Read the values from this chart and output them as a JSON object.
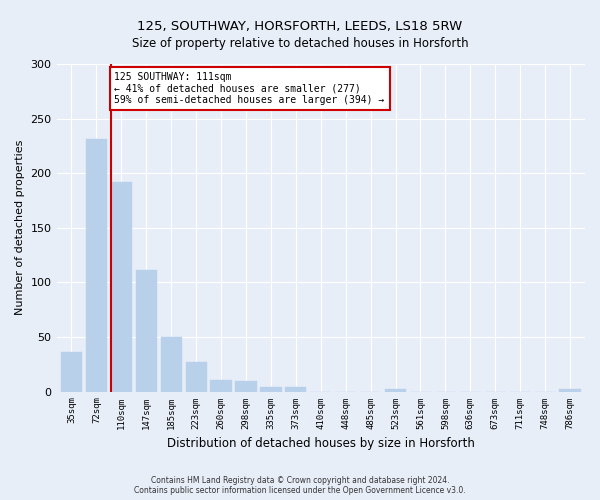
{
  "title": "125, SOUTHWAY, HORSFORTH, LEEDS, LS18 5RW",
  "subtitle": "Size of property relative to detached houses in Horsforth",
  "xlabel": "Distribution of detached houses by size in Horsforth",
  "ylabel": "Number of detached properties",
  "bin_labels": [
    "35sqm",
    "72sqm",
    "110sqm",
    "147sqm",
    "185sqm",
    "223sqm",
    "260sqm",
    "298sqm",
    "335sqm",
    "373sqm",
    "410sqm",
    "448sqm",
    "485sqm",
    "523sqm",
    "561sqm",
    "598sqm",
    "636sqm",
    "673sqm",
    "711sqm",
    "748sqm",
    "786sqm"
  ],
  "bar_heights": [
    36,
    231,
    192,
    111,
    50,
    27,
    11,
    10,
    4,
    4,
    0,
    0,
    0,
    2,
    0,
    0,
    0,
    0,
    0,
    0,
    2
  ],
  "bar_color": "#b8d0ea",
  "bar_edge_color": "#b8d0ea",
  "highlight_bar_index": 2,
  "highlight_line_color": "#cc0000",
  "annotation_line1": "125 SOUTHWAY: 111sqm",
  "annotation_line2": "← 41% of detached houses are smaller (277)",
  "annotation_line3": "59% of semi-detached houses are larger (394) →",
  "annotation_box_color": "#ffffff",
  "annotation_box_edge_color": "#cc0000",
  "ylim": [
    0,
    300
  ],
  "yticks": [
    0,
    50,
    100,
    150,
    200,
    250,
    300
  ],
  "background_color": "#e8eef8",
  "grid_color": "#ffffff",
  "footer_line1": "Contains HM Land Registry data © Crown copyright and database right 2024.",
  "footer_line2": "Contains public sector information licensed under the Open Government Licence v3.0."
}
